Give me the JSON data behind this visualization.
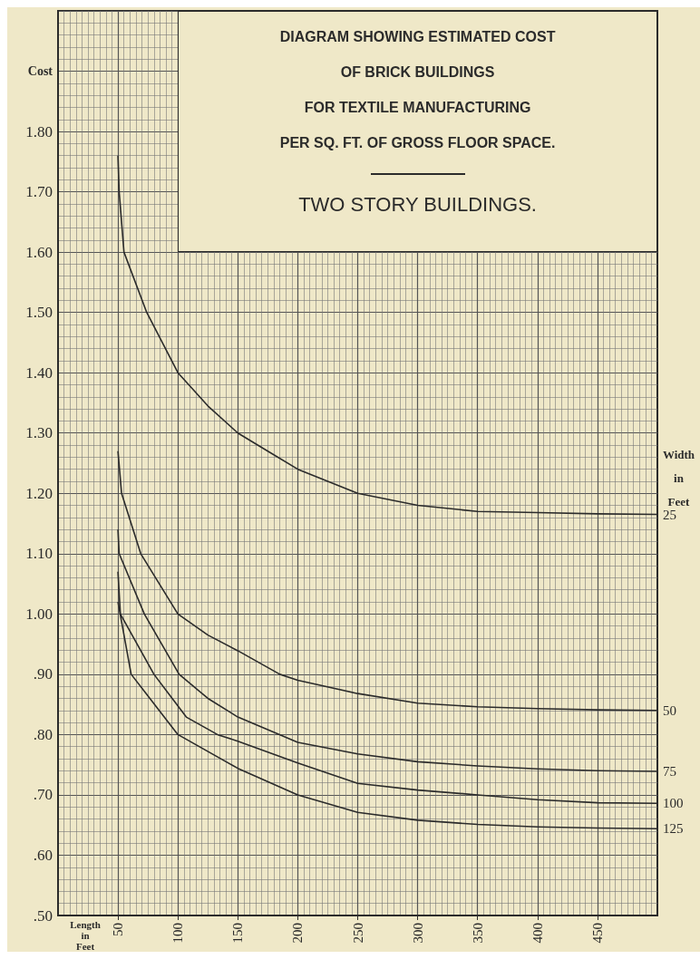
{
  "chart_data": {
    "type": "line",
    "title": "DIAGRAM SHOWING ESTIMATED COST\nOF BRICK BUILDINGS\nFOR TEXTILE MANUFACTURING\nPER SQ. FT. OF GROSS FLOOR SPACE.",
    "subtitle": "TWO STORY BUILDINGS.",
    "xlabel": "Length in Feet",
    "ylabel": "Cost",
    "legend_title": "Width in Feet",
    "xlim": [
      0,
      500
    ],
    "xticks": [
      50,
      100,
      150,
      200,
      250,
      300,
      350,
      400,
      450
    ],
    "ylim": [
      0.5,
      2.0
    ],
    "yticks": [
      {
        "value": 0.5,
        "label": ".50"
      },
      {
        "value": 0.6,
        "label": ".60"
      },
      {
        "value": 0.7,
        "label": ".70"
      },
      {
        "value": 0.8,
        "label": ".80"
      },
      {
        "value": 0.9,
        "label": ".90"
      },
      {
        "value": 1.0,
        "label": "1.00"
      },
      {
        "value": 1.1,
        "label": "1.10"
      },
      {
        "value": 1.2,
        "label": "1.20"
      },
      {
        "value": 1.3,
        "label": "1.30"
      },
      {
        "value": 1.4,
        "label": "1.40"
      },
      {
        "value": 1.5,
        "label": "1.50"
      },
      {
        "value": 1.6,
        "label": "1.60"
      },
      {
        "value": 1.7,
        "label": "1.70"
      },
      {
        "value": 1.8,
        "label": "1.80"
      }
    ],
    "grid": true,
    "marker": "none",
    "line_style": "solid",
    "series": [
      {
        "name": "25",
        "color": "#2b2b2b",
        "x": [
          50,
          51,
          55,
          74,
          100,
          125,
          150,
          175,
          200,
          250,
          300,
          350,
          400,
          450,
          500
        ],
        "values": [
          1.76,
          1.7,
          1.6,
          1.5,
          1.4,
          1.345,
          1.3,
          1.27,
          1.24,
          1.2,
          1.18,
          1.17,
          1.168,
          1.166,
          1.165
        ]
      },
      {
        "name": "50",
        "color": "#2b2b2b",
        "x": [
          50,
          53,
          69,
          100,
          125,
          150,
          185,
          200,
          250,
          300,
          350,
          400,
          450,
          500
        ],
        "values": [
          1.27,
          1.2,
          1.1,
          1.0,
          0.965,
          0.939,
          0.9,
          0.89,
          0.868,
          0.852,
          0.846,
          0.843,
          0.841,
          0.84
        ]
      },
      {
        "name": "75",
        "color": "#2b2b2b",
        "x": [
          50,
          51,
          72,
          101,
          125,
          150,
          200,
          250,
          300,
          350,
          400,
          450,
          500
        ],
        "values": [
          1.14,
          1.1,
          1.0,
          0.9,
          0.86,
          0.829,
          0.787,
          0.768,
          0.755,
          0.748,
          0.743,
          0.74,
          0.739
        ]
      },
      {
        "name": "100",
        "color": "#2b2b2b",
        "x": [
          50,
          52,
          80,
          107,
          133,
          150,
          200,
          250,
          300,
          350,
          400,
          450,
          500
        ],
        "values": [
          1.07,
          1.0,
          0.9,
          0.829,
          0.8,
          0.789,
          0.753,
          0.719,
          0.708,
          0.7,
          0.692,
          0.687,
          0.686
        ]
      },
      {
        "name": "125",
        "color": "#2b2b2b",
        "x": [
          50,
          61,
          100,
          150,
          200,
          250,
          300,
          350,
          400,
          450,
          500
        ],
        "values": [
          1.02,
          0.9,
          0.8,
          0.744,
          0.7,
          0.671,
          0.658,
          0.651,
          0.647,
          0.645,
          0.644
        ]
      }
    ]
  }
}
